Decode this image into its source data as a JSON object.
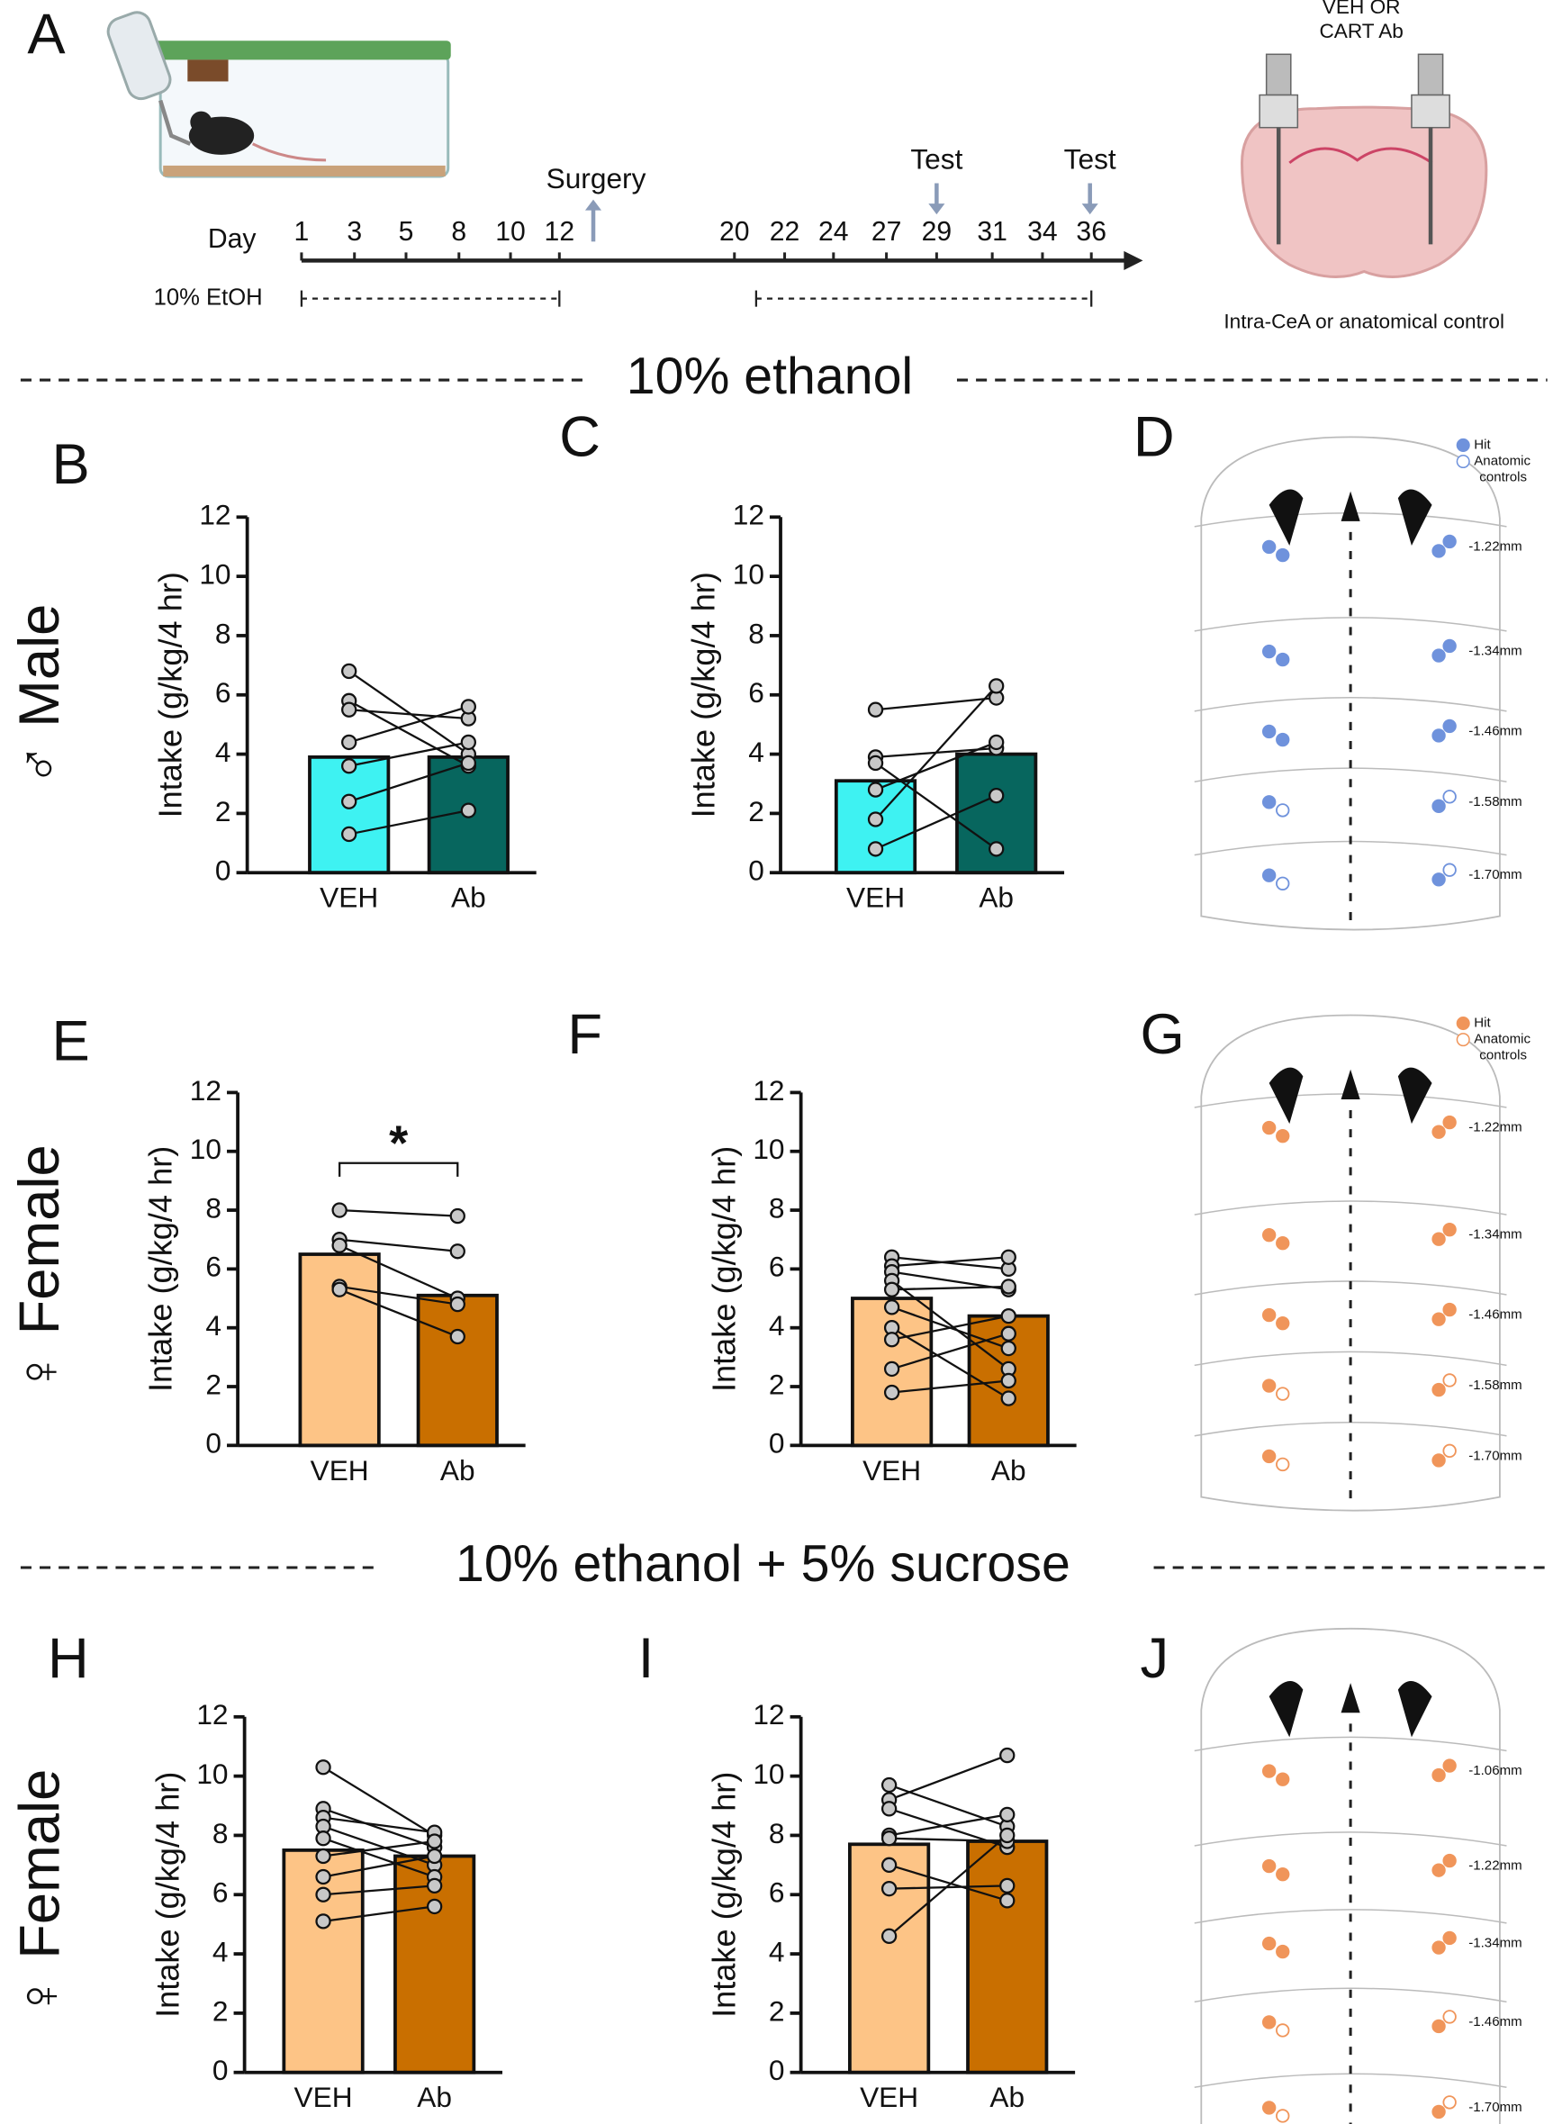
{
  "panel_letters": [
    "A",
    "B",
    "C",
    "D",
    "E",
    "F",
    "G",
    "H",
    "I",
    "J"
  ],
  "row_labels": [
    "♂ Male",
    "♀ Female",
    "♀ Female"
  ],
  "section_headers": [
    "10% ethanol",
    "10% ethanol + 5% sucrose"
  ],
  "panel_a": {
    "day_label": "Day",
    "days": [
      "1",
      "3",
      "5",
      "8",
      "10",
      "12",
      "20",
      "22",
      "24",
      "27",
      "29",
      "31",
      "34",
      "36"
    ],
    "surgery": "Surgery",
    "test_labels": [
      "Test",
      "Test"
    ],
    "etoh_label": "10% EtOH",
    "injection_lines": [
      "VEH OR",
      "CART Ab"
    ],
    "placement": "Intra-CeA or anatomical control"
  },
  "histology": [
    {
      "legend": {
        "hit": "Hit",
        "control_lines": [
          "Anatomic",
          "controls"
        ]
      },
      "levels": [
        "-1.22mm",
        "-1.34mm",
        "-1.46mm",
        "-1.58mm",
        "-1.70mm"
      ]
    },
    {
      "legend": {
        "hit": "Hit",
        "control_lines": [
          "Anatomic",
          "controls"
        ]
      },
      "levels": [
        "-1.22mm",
        "-1.34mm",
        "-1.46mm",
        "-1.58mm",
        "-1.70mm"
      ]
    },
    {
      "levels": [
        "-1.06mm",
        "-1.22mm",
        "-1.34mm",
        "-1.46mm",
        "-1.70mm"
      ]
    }
  ],
  "chart_data": [
    {
      "type": "bar",
      "ylabel": "Intake (g/kg/4 hr)",
      "categories": [
        "VEH",
        "Ab"
      ],
      "values": [
        3.9,
        3.9
      ],
      "colors": [
        "#3ef2f2",
        "#07665e"
      ],
      "ylim": [
        0,
        12
      ],
      "yticks": [
        0,
        2,
        4,
        6,
        8,
        10,
        12
      ],
      "paired_points": [
        [
          6.8,
          4.0
        ],
        [
          5.8,
          3.6
        ],
        [
          5.5,
          5.2
        ],
        [
          4.4,
          5.6
        ],
        [
          3.6,
          4.4
        ],
        [
          2.4,
          3.7
        ],
        [
          1.3,
          2.1
        ]
      ]
    },
    {
      "type": "bar",
      "ylabel": "Intake (g/kg/4 hr)",
      "categories": [
        "VEH",
        "Ab"
      ],
      "values": [
        3.1,
        4.0
      ],
      "colors": [
        "#3ef2f2",
        "#07665e"
      ],
      "ylim": [
        0,
        12
      ],
      "yticks": [
        0,
        2,
        4,
        6,
        8,
        10,
        12
      ],
      "paired_points": [
        [
          5.5,
          5.9
        ],
        [
          3.9,
          4.2
        ],
        [
          3.7,
          0.8
        ],
        [
          2.8,
          4.4
        ],
        [
          1.8,
          6.3
        ],
        [
          0.8,
          2.6
        ]
      ]
    },
    {
      "type": "bar",
      "ylabel": "Intake (g/kg/4 hr)",
      "categories": [
        "VEH",
        "Ab"
      ],
      "values": [
        6.5,
        5.1
      ],
      "colors": [
        "#fdc486",
        "#c96f00"
      ],
      "ylim": [
        0,
        12
      ],
      "yticks": [
        0,
        2,
        4,
        6,
        8,
        10,
        12
      ],
      "annotation": "*",
      "paired_points": [
        [
          8.0,
          7.8
        ],
        [
          7.0,
          6.6
        ],
        [
          6.8,
          5.0
        ],
        [
          5.4,
          4.8
        ],
        [
          5.3,
          3.7
        ]
      ]
    },
    {
      "type": "bar",
      "ylabel": "Intake (g/kg/4 hr)",
      "categories": [
        "VEH",
        "Ab"
      ],
      "values": [
        5.0,
        4.4
      ],
      "colors": [
        "#fdc486",
        "#c96f00"
      ],
      "ylim": [
        0,
        12
      ],
      "yticks": [
        0,
        2,
        4,
        6,
        8,
        10,
        12
      ],
      "paired_points": [
        [
          6.4,
          6.0
        ],
        [
          6.1,
          6.4
        ],
        [
          5.9,
          5.3
        ],
        [
          5.6,
          2.6
        ],
        [
          5.3,
          5.4
        ],
        [
          4.7,
          3.3
        ],
        [
          4.0,
          1.6
        ],
        [
          3.6,
          4.4
        ],
        [
          2.6,
          3.8
        ],
        [
          1.8,
          2.2
        ]
      ]
    },
    {
      "type": "bar",
      "ylabel": "Intake (g/kg/4 hr)",
      "categories": [
        "VEH",
        "Ab"
      ],
      "values": [
        7.5,
        7.3
      ],
      "colors": [
        "#fdc486",
        "#c96f00"
      ],
      "ylim": [
        0,
        12
      ],
      "yticks": [
        0,
        2,
        4,
        6,
        8,
        10,
        12
      ],
      "paired_points": [
        [
          10.3,
          8.0
        ],
        [
          8.9,
          7.6
        ],
        [
          8.6,
          8.1
        ],
        [
          8.3,
          7.0
        ],
        [
          7.9,
          6.6
        ],
        [
          7.3,
          7.8
        ],
        [
          6.6,
          7.3
        ],
        [
          6.0,
          6.3
        ],
        [
          5.1,
          5.6
        ]
      ]
    },
    {
      "type": "bar",
      "ylabel": "Intake (g/kg/4 hr)",
      "categories": [
        "VEH",
        "Ab"
      ],
      "values": [
        7.7,
        7.8
      ],
      "colors": [
        "#fdc486",
        "#c96f00"
      ],
      "ylim": [
        0,
        12
      ],
      "yticks": [
        0,
        2,
        4,
        6,
        8,
        10,
        12
      ],
      "paired_points": [
        [
          9.7,
          8.3
        ],
        [
          9.2,
          10.7
        ],
        [
          8.9,
          7.6
        ],
        [
          8.0,
          8.7
        ],
        [
          7.9,
          7.8
        ],
        [
          7.0,
          5.8
        ],
        [
          6.2,
          6.3
        ],
        [
          4.6,
          8.0
        ]
      ]
    }
  ]
}
